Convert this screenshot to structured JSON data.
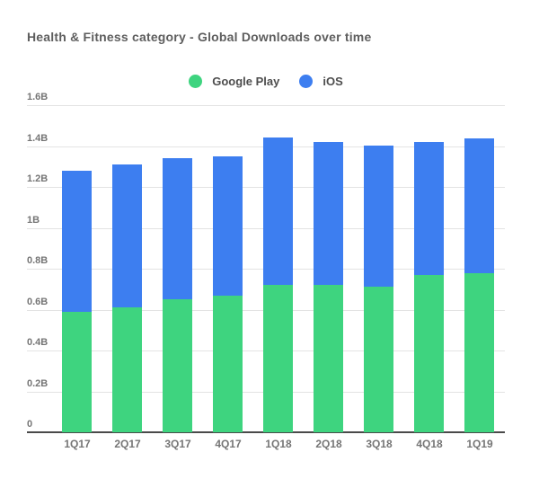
{
  "chart_data": {
    "type": "bar",
    "stacked": true,
    "title": "Health & Fitness category - Global Downloads over time",
    "unit": "B (billions of downloads)",
    "categories": [
      "1Q17",
      "2Q17",
      "3Q17",
      "4Q17",
      "1Q18",
      "2Q18",
      "3Q18",
      "4Q18",
      "1Q19"
    ],
    "series": [
      {
        "name": "Google Play",
        "color": "#3ed47f",
        "values": [
          0.59,
          0.61,
          0.65,
          0.67,
          0.72,
          0.72,
          0.71,
          0.77,
          0.78
        ]
      },
      {
        "name": "iOS",
        "color": "#3d7ef0",
        "values": [
          0.69,
          0.7,
          0.69,
          0.68,
          0.72,
          0.7,
          0.69,
          0.65,
          0.66
        ]
      }
    ],
    "totals": [
      1.28,
      1.31,
      1.34,
      1.35,
      1.44,
      1.42,
      1.4,
      1.42,
      1.44
    ],
    "ylim": [
      0,
      1.6
    ],
    "yticks": [
      {
        "value": 0.0,
        "label": "0"
      },
      {
        "value": 0.2,
        "label": "0.2B"
      },
      {
        "value": 0.4,
        "label": "0.4B"
      },
      {
        "value": 0.6,
        "label": "0.6B"
      },
      {
        "value": 0.8,
        "label": "0.8B"
      },
      {
        "value": 1.0,
        "label": "1B"
      },
      {
        "value": 1.2,
        "label": "1.2B"
      },
      {
        "value": 1.4,
        "label": "1.4B"
      },
      {
        "value": 1.6,
        "label": "1.6B"
      }
    ],
    "grid": true,
    "legend_position": "top",
    "legend": [
      {
        "label": "Google Play",
        "color": "#3ed47f"
      },
      {
        "label": "iOS",
        "color": "#3d7ef0"
      }
    ],
    "colors": {
      "background": "#ffffff",
      "title_text": "#5e5e5e",
      "legend_text": "#4d4d4d",
      "tick_text": "#757575",
      "gridline": "#e3e3e3",
      "axis_line": "#4a4a4a"
    }
  }
}
